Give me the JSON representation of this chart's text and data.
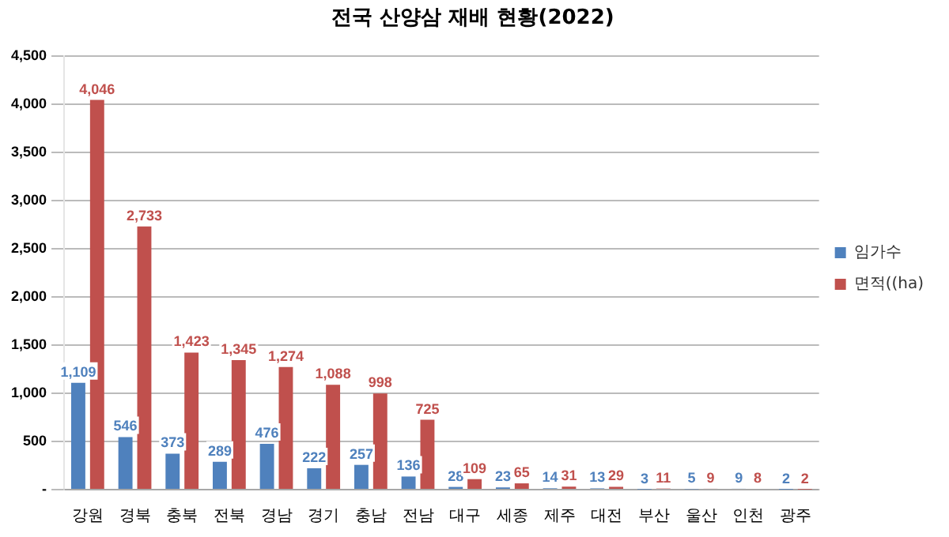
{
  "chart_data": {
    "type": "bar",
    "title": "전국 산양삼 재배 현황(2022)",
    "categories": [
      "강원",
      "경북",
      "충북",
      "전북",
      "경남",
      "경기",
      "충남",
      "전남",
      "대구",
      "세종",
      "제주",
      "대전",
      "부산",
      "울산",
      "인천",
      "광주"
    ],
    "series": [
      {
        "name": "임가수",
        "color": "#4f81bd",
        "values": [
          1109,
          546,
          373,
          289,
          476,
          222,
          257,
          136,
          28,
          23,
          14,
          13,
          3,
          5,
          9,
          2
        ],
        "value_labels": [
          "1,109",
          "546",
          "373",
          "289",
          "476",
          "222",
          "257",
          "136",
          "28",
          "23",
          "14",
          "13",
          "3",
          "5",
          "9",
          "2"
        ]
      },
      {
        "name": "면적((ha)",
        "color": "#c0504d",
        "values": [
          4046,
          2733,
          1423,
          1345,
          1274,
          1088,
          998,
          725,
          109,
          65,
          31,
          29,
          11,
          9,
          8,
          2
        ],
        "value_labels": [
          "4,046",
          "2,733",
          "1,423",
          "1,345",
          "1,274",
          "1,088",
          "998",
          "725",
          "109",
          "65",
          "31",
          "29",
          "11",
          "9",
          "8",
          "2"
        ]
      }
    ],
    "ylim": [
      0,
      4500
    ],
    "yticks": [
      {
        "value": 0,
        "label": "-"
      },
      {
        "value": 500,
        "label": "500"
      },
      {
        "value": 1000,
        "label": "1,000"
      },
      {
        "value": 1500,
        "label": "1,500"
      },
      {
        "value": 2000,
        "label": "2,000"
      },
      {
        "value": 2500,
        "label": "2,500"
      },
      {
        "value": 3000,
        "label": "3,000"
      },
      {
        "value": 3500,
        "label": "3,500"
      },
      {
        "value": 4000,
        "label": "4,000"
      },
      {
        "value": 4500,
        "label": "4,500"
      }
    ],
    "grid": "y",
    "legend": "right"
  }
}
